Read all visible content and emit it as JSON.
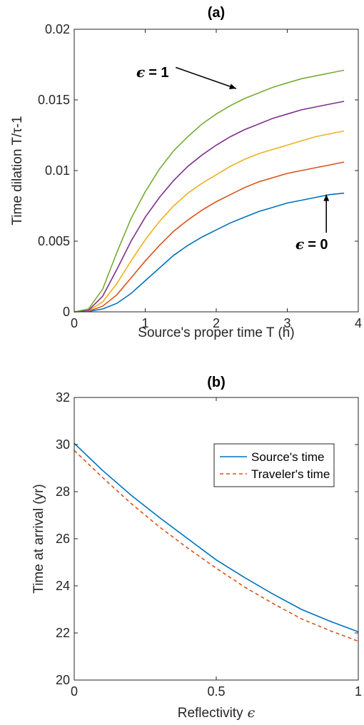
{
  "chart_data": [
    {
      "type": "line",
      "title": "(a)",
      "xlabel": "Source's proper time T (h)",
      "ylabel": "Time dilation T/τ-1",
      "xlim": [
        0,
        4
      ],
      "ylim": [
        0,
        0.02
      ],
      "xticks": [
        "0",
        "1",
        "2",
        "3",
        "4"
      ],
      "yticks": [
        "0",
        "0.005",
        "0.01",
        "0.015",
        "0.02"
      ],
      "grid": false,
      "series": [
        {
          "color": "#0072BD",
          "x": [
            0,
            0.2,
            0.4,
            0.6,
            0.8,
            1.0,
            1.2,
            1.4,
            1.6,
            1.8,
            2.0,
            2.2,
            2.4,
            2.6,
            2.8,
            3.0,
            3.2,
            3.4,
            3.6,
            3.8
          ],
          "y": [
            0,
            3e-05,
            0.0002,
            0.0006,
            0.0013,
            0.0022,
            0.0031,
            0.004,
            0.0047,
            0.0053,
            0.0058,
            0.0063,
            0.0067,
            0.0071,
            0.0074,
            0.0077,
            0.0079,
            0.0081,
            0.0083,
            0.0084
          ]
        },
        {
          "color": "#D95319",
          "x": [
            0,
            0.2,
            0.4,
            0.6,
            0.8,
            1.0,
            1.2,
            1.4,
            1.6,
            1.8,
            2.0,
            2.2,
            2.4,
            2.6,
            2.8,
            3.0,
            3.2,
            3.4,
            3.6,
            3.8
          ],
          "y": [
            0,
            5e-05,
            0.0004,
            0.0012,
            0.0024,
            0.0036,
            0.0047,
            0.0057,
            0.0065,
            0.0072,
            0.0078,
            0.0083,
            0.0088,
            0.0092,
            0.0095,
            0.0098,
            0.01,
            0.0102,
            0.0104,
            0.0106
          ]
        },
        {
          "color": "#EDB120",
          "x": [
            0,
            0.2,
            0.4,
            0.6,
            0.8,
            1.0,
            1.2,
            1.4,
            1.6,
            1.8,
            2.0,
            2.2,
            2.4,
            2.6,
            2.8,
            3.0,
            3.2,
            3.4,
            3.6,
            3.8
          ],
          "y": [
            0,
            8e-05,
            0.0007,
            0.002,
            0.0036,
            0.0051,
            0.0064,
            0.0075,
            0.0084,
            0.0091,
            0.0097,
            0.0103,
            0.0108,
            0.0112,
            0.0115,
            0.0118,
            0.0121,
            0.0124,
            0.0126,
            0.0128
          ]
        },
        {
          "color": "#7E2F8E",
          "x": [
            0,
            0.2,
            0.4,
            0.6,
            0.8,
            1.0,
            1.2,
            1.4,
            1.6,
            1.8,
            2.0,
            2.2,
            2.4,
            2.6,
            2.8,
            3.0,
            3.2,
            3.4,
            3.6,
            3.8
          ],
          "y": [
            0,
            0.0001,
            0.0011,
            0.003,
            0.005,
            0.0067,
            0.0081,
            0.0093,
            0.0103,
            0.0111,
            0.0118,
            0.0124,
            0.0129,
            0.0133,
            0.0137,
            0.014,
            0.0143,
            0.0145,
            0.0147,
            0.0149
          ]
        },
        {
          "color": "#77AC30",
          "x": [
            0,
            0.2,
            0.4,
            0.6,
            0.8,
            1.0,
            1.2,
            1.4,
            1.6,
            1.8,
            2.0,
            2.2,
            2.4,
            2.6,
            2.8,
            3.0,
            3.2,
            3.4,
            3.6,
            3.8
          ],
          "y": [
            0,
            0.0002,
            0.0016,
            0.0042,
            0.0066,
            0.0085,
            0.0101,
            0.0114,
            0.0124,
            0.0133,
            0.014,
            0.0146,
            0.0151,
            0.0155,
            0.0159,
            0.0162,
            0.0165,
            0.0167,
            0.0169,
            0.0171
          ]
        }
      ],
      "annotations": [
        {
          "label": "= 1",
          "symbol": "ϵ",
          "arrow_from": [
            1.43,
            0.0173
          ],
          "arrow_to": [
            2.28,
            0.0158
          ]
        },
        {
          "label": "= 0",
          "symbol": "ϵ",
          "arrow_from": [
            3.55,
            0.0056
          ],
          "arrow_to": [
            3.55,
            0.0083
          ]
        }
      ]
    },
    {
      "type": "line",
      "title": "(b)",
      "xlabel": "Reflectivity",
      "xlabel_symbol": "ϵ",
      "ylabel": "Time at arrival (yr)",
      "xlim": [
        0,
        1
      ],
      "ylim": [
        20,
        32
      ],
      "xticks": [
        "0",
        "0.5",
        "1"
      ],
      "yticks": [
        "20",
        "22",
        "24",
        "26",
        "28",
        "30",
        "32"
      ],
      "grid": false,
      "legend_position": "top-right",
      "series": [
        {
          "name": "Source's time",
          "color": "#0072BD",
          "dash": "solid",
          "x": [
            0,
            0.1,
            0.2,
            0.3,
            0.4,
            0.5,
            0.6,
            0.7,
            0.8,
            0.9,
            1.0
          ],
          "y": [
            30.05,
            28.9,
            27.85,
            26.9,
            26.0,
            25.1,
            24.35,
            23.65,
            23.0,
            22.5,
            22.05
          ]
        },
        {
          "name": "Traveler's time",
          "color": "#D95319",
          "dash": "dashed",
          "x": [
            0,
            0.1,
            0.2,
            0.3,
            0.4,
            0.5,
            0.6,
            0.7,
            0.8,
            0.9,
            1.0
          ],
          "y": [
            29.75,
            28.6,
            27.5,
            26.5,
            25.6,
            24.75,
            23.95,
            23.25,
            22.6,
            22.1,
            21.65
          ]
        }
      ]
    }
  ]
}
